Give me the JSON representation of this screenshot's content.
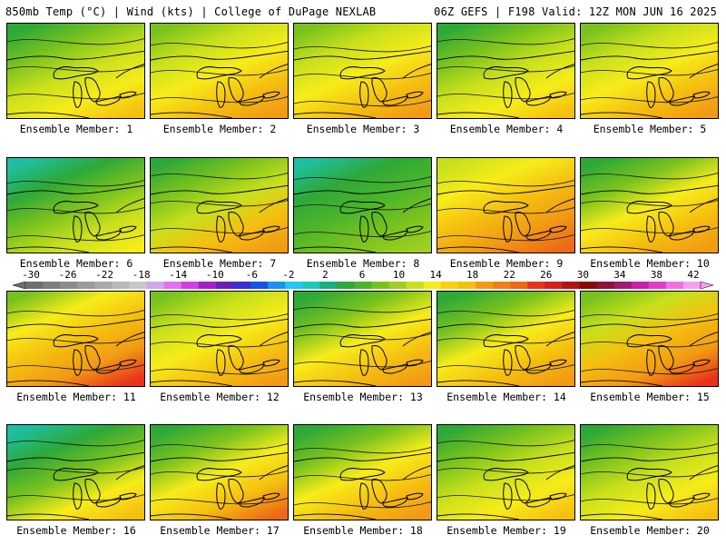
{
  "header": {
    "left": "850mb Temp (°C) | Wind (kts) | College of DuPage NEXLAB",
    "right": "06Z GEFS | F198 Valid: 12Z MON JUN 16 2025"
  },
  "panels": [
    {
      "label": "Ensemble Member: 1",
      "palette": [
        "#2ea838",
        "#79c21e",
        "#c8e01c",
        "#f7ec1a",
        "#f5bf10"
      ]
    },
    {
      "label": "Ensemble Member: 2",
      "palette": [
        "#79c21e",
        "#c8e01c",
        "#f7ec1a",
        "#f5bf10",
        "#f29a14"
      ]
    },
    {
      "label": "Ensemble Member: 3",
      "palette": [
        "#79c21e",
        "#c8e01c",
        "#f7ec1a",
        "#f5bf10",
        "#f29a14"
      ]
    },
    {
      "label": "Ensemble Member: 4",
      "palette": [
        "#2ea838",
        "#79c21e",
        "#c8e01c",
        "#f7ec1a",
        "#f5bf10"
      ]
    },
    {
      "label": "Ensemble Member: 5",
      "palette": [
        "#79c21e",
        "#c8e01c",
        "#f7ec1a",
        "#f5bf10",
        "#f29a14"
      ]
    },
    {
      "label": "Ensemble Member: 6",
      "palette": [
        "#1ebf9e",
        "#2ea838",
        "#79c21e",
        "#c8e01c",
        "#f7ec1a"
      ]
    },
    {
      "label": "Ensemble Member: 7",
      "palette": [
        "#2ea838",
        "#79c21e",
        "#c8e01c",
        "#f5bf10",
        "#f29a14"
      ]
    },
    {
      "label": "Ensemble Member: 8",
      "palette": [
        "#1ebf9e",
        "#2ea838",
        "#4bb52a",
        "#79c21e",
        "#9fcf22"
      ]
    },
    {
      "label": "Ensemble Member: 9",
      "palette": [
        "#c8e01c",
        "#f7ec1a",
        "#f5bf10",
        "#f29a14",
        "#ee6818"
      ]
    },
    {
      "label": "Ensemble Member: 10",
      "palette": [
        "#2ea838",
        "#79c21e",
        "#f7ec1a",
        "#f5bf10",
        "#f29a14"
      ]
    },
    {
      "label": "Ensemble Member: 11",
      "palette": [
        "#79c21e",
        "#f7ec1a",
        "#f5bf10",
        "#f29a14",
        "#e8321a"
      ]
    },
    {
      "label": "Ensemble Member: 12",
      "palette": [
        "#79c21e",
        "#c8e01c",
        "#f7ec1a",
        "#f5bf10",
        "#f29a14"
      ]
    },
    {
      "label": "Ensemble Member: 13",
      "palette": [
        "#2ea838",
        "#79c21e",
        "#f7ec1a",
        "#f5bf10",
        "#f29a14"
      ]
    },
    {
      "label": "Ensemble Member: 14",
      "palette": [
        "#2ea838",
        "#79c21e",
        "#f7ec1a",
        "#f5bf10",
        "#f29a14"
      ]
    },
    {
      "label": "Ensemble Member: 15",
      "palette": [
        "#79c21e",
        "#c8e01c",
        "#f5bf10",
        "#f29a14",
        "#e8321a"
      ]
    },
    {
      "label": "Ensemble Member: 16",
      "palette": [
        "#1ebf9e",
        "#2ea838",
        "#79c21e",
        "#f7ec1a",
        "#f5bf10"
      ]
    },
    {
      "label": "Ensemble Member: 17",
      "palette": [
        "#2ea838",
        "#79c21e",
        "#f7ec1a",
        "#f5bf10",
        "#ee6818"
      ]
    },
    {
      "label": "Ensemble Member: 18",
      "palette": [
        "#2ea838",
        "#79c21e",
        "#f7ec1a",
        "#f5bf10",
        "#f29a14"
      ]
    },
    {
      "label": "Ensemble Member: 19",
      "palette": [
        "#2ea838",
        "#79c21e",
        "#c8e01c",
        "#f7ec1a",
        "#f5bf10"
      ]
    },
    {
      "label": "Ensemble Member: 20",
      "palette": [
        "#2ea838",
        "#79c21e",
        "#c8e01c",
        "#f7ec1a",
        "#f5bf10"
      ]
    }
  ],
  "colorbar": {
    "ticks": [
      "-30",
      "-26",
      "-22",
      "-18",
      "-14",
      "-10",
      "-6",
      "-2",
      "2",
      "6",
      "10",
      "14",
      "18",
      "22",
      "26",
      "30",
      "34",
      "38",
      "42"
    ],
    "colors": [
      "#6e6e6e",
      "#7d7d7d",
      "#8c8c8c",
      "#9b9b9b",
      "#aaaaaa",
      "#b9b9b9",
      "#c8c8c8",
      "#d4a5e8",
      "#e070f0",
      "#d040e0",
      "#a020c8",
      "#6a1fb8",
      "#3a2fd0",
      "#1a4fe8",
      "#1e8ff0",
      "#22c8f0",
      "#1cc8b8",
      "#18b080",
      "#2ea838",
      "#4bb52a",
      "#79c21e",
      "#9fcf22",
      "#c8e01c",
      "#f7ec1a",
      "#f5d010",
      "#f5bf10",
      "#f29a14",
      "#ee8016",
      "#ee6818",
      "#e8321a",
      "#d81e1e",
      "#b01414",
      "#8c0a0a",
      "#8c1438",
      "#a01a70",
      "#c81ea8",
      "#e03cc8",
      "#f070e0",
      "#f8a0f0"
    ]
  }
}
